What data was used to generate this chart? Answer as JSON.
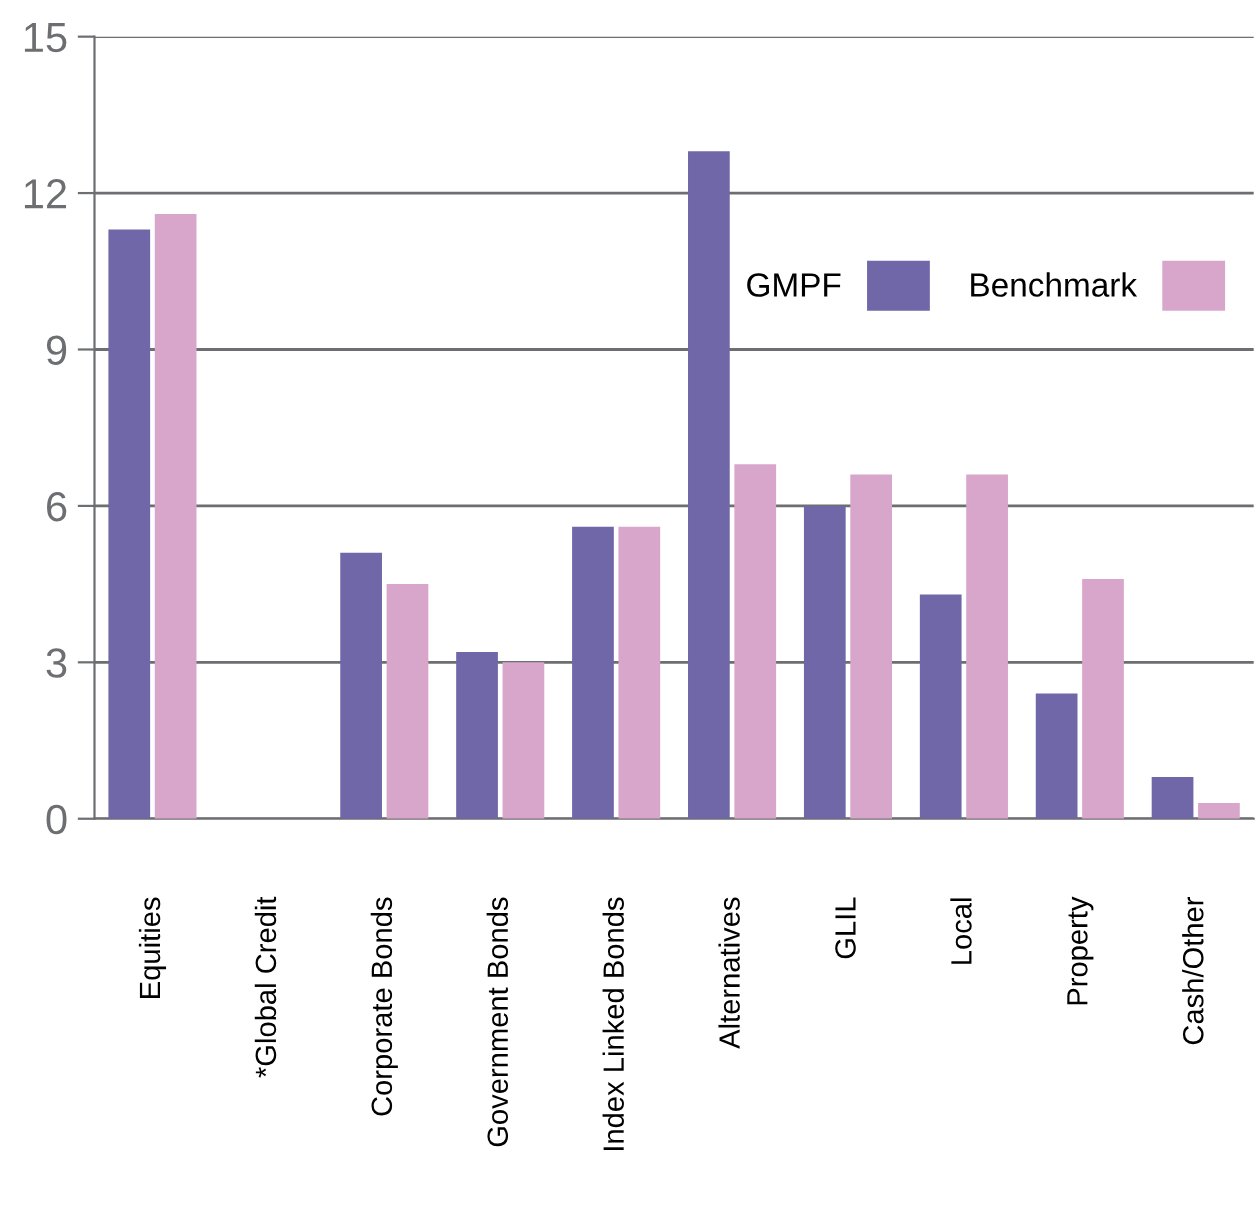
{
  "chart_data": {
    "type": "bar",
    "categories": [
      "Equities",
      "*Global Credit",
      "Corporate Bonds",
      "Government Bonds",
      "Index Linked Bonds",
      "Alternatives",
      "GLIL",
      "Local",
      "Property",
      "Cash/Other"
    ],
    "series": [
      {
        "name": "GMPF",
        "color": "#7067a9",
        "values": [
          11.3,
          0,
          5.1,
          3.2,
          5.6,
          12.8,
          6.0,
          4.3,
          2.4,
          0.8
        ]
      },
      {
        "name": "Benchmark",
        "color": "#d9a6cb",
        "values": [
          11.6,
          0,
          4.5,
          3.0,
          5.6,
          6.8,
          6.6,
          6.6,
          4.6,
          0.3
        ]
      }
    ],
    "ylim": [
      0,
      15
    ],
    "yticks": [
      0,
      3,
      6,
      9,
      12,
      15
    ],
    "grid": "y",
    "legend": "top right"
  }
}
